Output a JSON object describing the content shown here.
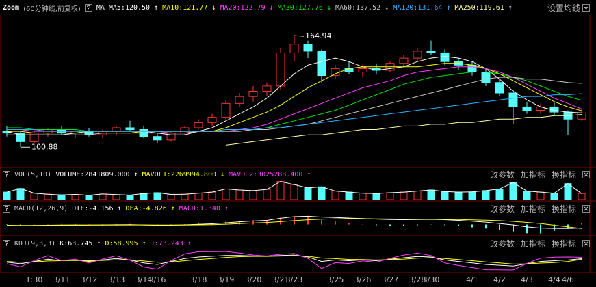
{
  "chart_data": [
    {
      "type": "candlestick",
      "title": "Zoom",
      "subtitle": "(60分钟线,前复权)",
      "legend_title": "MA",
      "settings": "设置均线",
      "up_color": "#ff3232",
      "down_color": "#54fcfc",
      "categories": [
        null,
        null,
        "1:30",
        null,
        "3/11",
        null,
        "3/12",
        null,
        "3/13",
        null,
        "3/14",
        "3/16",
        null,
        null,
        "3/18",
        null,
        "3/19",
        null,
        "3/20",
        null,
        "3/21",
        "3/23",
        null,
        null,
        "3/25",
        null,
        "3/26",
        null,
        "3/27",
        null,
        "3/28",
        "3/30",
        null,
        null,
        "4/1",
        null,
        "4/2",
        null,
        "4/3",
        null,
        "4/4",
        "4/6",
        null
      ],
      "open": [
        110,
        109,
        104,
        109,
        111,
        109,
        110,
        108,
        110,
        112,
        111,
        107,
        105,
        109,
        112,
        115,
        118,
        126,
        130,
        133,
        136,
        155,
        160,
        156,
        142,
        146,
        144,
        146,
        145,
        149,
        152,
        156,
        155,
        150,
        148,
        144,
        138,
        132,
        124,
        122,
        124,
        121,
        117
      ],
      "high": [
        113,
        110,
        110,
        112,
        113,
        111,
        112,
        111,
        113,
        116,
        113,
        109,
        110,
        113,
        117,
        120,
        128,
        132,
        136,
        138,
        158,
        164.94,
        162,
        157,
        148,
        150,
        148,
        149,
        150,
        154,
        158,
        162,
        157,
        152,
        150,
        146,
        140,
        134,
        127,
        126,
        127,
        122,
        123
      ],
      "low": [
        107,
        100.88,
        103,
        107,
        108,
        106,
        107,
        106,
        108,
        110,
        106,
        103,
        104,
        108,
        111,
        113,
        117,
        124,
        127,
        130,
        134,
        150,
        152,
        138,
        140,
        143,
        141,
        143,
        144,
        147,
        150,
        154,
        148,
        145,
        142,
        136,
        130,
        114,
        120,
        120,
        119,
        108,
        116
      ],
      "close": [
        109,
        104,
        109,
        111,
        109,
        110,
        108,
        110,
        112,
        111,
        107,
        105,
        109,
        112,
        115,
        118,
        126,
        130,
        133,
        136,
        155,
        160,
        156,
        142,
        146,
        144,
        146,
        145,
        149,
        152,
        156,
        155,
        150,
        148,
        144,
        138,
        132,
        124,
        122,
        124,
        121,
        117,
        120.5
      ],
      "ylim": [
        90,
        176
      ],
      "series": [
        {
          "name": "MA5:120.50 ↑",
          "color": "#ffffff",
          "values": [
            110,
            108,
            108,
            108,
            108,
            109,
            110,
            110,
            110,
            110,
            110,
            109,
            108,
            108,
            110,
            112,
            116,
            120,
            124,
            129,
            136,
            143,
            148,
            150,
            152,
            150,
            147,
            145,
            146,
            147,
            150,
            152,
            153,
            152,
            150,
            146,
            140,
            133,
            128,
            124,
            122,
            121,
            120.5
          ]
        },
        {
          "name": "MA10:121.77 ↓",
          "color": "#ffff00",
          "values": [
            110,
            110,
            109,
            109,
            109,
            109,
            109,
            109,
            109,
            109,
            110,
            110,
            110,
            110,
            110,
            110,
            112,
            115,
            118,
            121,
            125,
            130,
            135,
            139,
            143,
            146,
            147,
            147,
            147,
            147,
            147,
            148,
            149,
            149,
            148,
            146,
            143,
            139,
            135,
            131,
            127,
            124,
            121.77
          ]
        },
        {
          "name": "MA20:122.79 ↓",
          "color": "#ff40ff",
          "values": [
            111,
            111,
            110,
            110,
            110,
            110,
            110,
            110,
            110,
            110,
            110,
            110,
            109,
            109,
            110,
            110,
            110,
            111,
            112,
            114,
            117,
            120,
            123,
            126,
            129,
            132,
            135,
            137,
            139,
            142,
            144,
            145,
            146,
            147,
            147,
            146,
            144,
            141,
            137,
            133,
            129,
            126,
            122.79
          ]
        },
        {
          "name": "MA30:127.76 ↓",
          "color": "#00e600",
          "values": [
            112,
            112,
            111,
            111,
            111,
            111,
            110,
            110,
            110,
            110,
            110,
            110,
            110,
            110,
            110,
            110,
            110,
            110,
            111,
            112,
            114,
            116,
            118,
            120,
            122,
            125,
            128,
            131,
            134,
            137,
            139,
            141,
            142,
            143,
            144,
            144,
            143,
            141,
            139,
            136,
            133,
            130,
            127.76
          ]
        },
        {
          "name": "MA60:137.52 ↓",
          "color": "#c8c8c8",
          "values": [
            108,
            108,
            108,
            108,
            108,
            108,
            108,
            109,
            109,
            109,
            109,
            109,
            109,
            109,
            110,
            110,
            110,
            110,
            111,
            111,
            112,
            113,
            114,
            116,
            118,
            120,
            122,
            124,
            126,
            128,
            130,
            132,
            134,
            136,
            138,
            140,
            141,
            141,
            140,
            140,
            139,
            138,
            137.52
          ]
        },
        {
          "name": "MA120:131.64 ↑",
          "color": "#2ab4ff",
          "values": [
            111,
            111,
            111,
            110,
            110,
            110,
            110,
            110,
            110,
            110,
            110,
            110,
            110,
            110,
            110,
            110,
            111,
            111,
            111,
            112,
            112,
            113,
            114,
            115,
            116,
            117,
            118,
            119,
            120,
            121,
            122,
            123,
            124,
            125,
            126,
            127,
            128,
            129,
            130,
            130,
            131,
            131,
            131.64
          ]
        },
        {
          "name": "MA250:119.61 ↑",
          "color": "#ffffa8",
          "values": [
            null,
            null,
            null,
            null,
            null,
            null,
            null,
            null,
            null,
            null,
            null,
            null,
            null,
            null,
            null,
            null,
            102,
            103,
            104,
            105,
            106,
            107,
            108,
            108,
            109,
            110,
            111,
            111,
            112,
            113,
            113,
            114,
            114,
            115,
            115,
            116,
            117,
            117,
            118,
            118,
            119,
            119,
            119.61
          ]
        }
      ]
    },
    {
      "type": "bar",
      "title": "VOL(5,10)",
      "buttons": [
        "改参数",
        "加指标",
        "换指标"
      ],
      "ylim": [
        0,
        9000000
      ],
      "series": [
        {
          "name": "VOLUME:2841809.000 ↑",
          "color": "#ffffff",
          "values": [
            3500000,
            5200000,
            3000000,
            2500000,
            2200000,
            2400000,
            2000000,
            2600000,
            2300000,
            2100000,
            2800000,
            3200000,
            2400000,
            2500000,
            3000000,
            3500000,
            5000000,
            4500000,
            4200000,
            4800000,
            8500000,
            7000000,
            5500000,
            6000000,
            4000000,
            3500000,
            3000000,
            2800000,
            3200000,
            3500000,
            4000000,
            4500000,
            3800000,
            3500000,
            3600000,
            4200000,
            5000000,
            8000000,
            4000000,
            3500000,
            3000000,
            7500000,
            2841809
          ]
        },
        {
          "name": "MAVOL1:2269994.800 ↓",
          "color": "#ffff00"
        },
        {
          "name": "MAVOL2:3025288.400 ↑",
          "color": "#ff40ff"
        }
      ]
    },
    {
      "type": "macd",
      "title": "MACD(12,26,9)",
      "buttons": [
        "改参数",
        "加指标",
        "换指标"
      ],
      "ylim": [
        -12,
        12
      ],
      "up_color": "#ff3232",
      "down_color": "#54fcfc",
      "series": [
        {
          "name": "DIF:-4.156 ↑",
          "color": "#ffffff",
          "values": [
            -1,
            -1.5,
            -1.2,
            -0.8,
            -0.6,
            -0.5,
            -0.6,
            -0.5,
            -0.3,
            -0.2,
            -0.5,
            -0.9,
            -0.8,
            -0.4,
            0.2,
            0.8,
            2,
            3.2,
            4.2,
            5,
            7.5,
            9.5,
            10,
            9,
            8.5,
            7.8,
            7.2,
            6.5,
            6,
            5.8,
            6,
            6.2,
            5.8,
            5,
            4,
            2.8,
            1.2,
            -0.5,
            -2.8,
            -4.2,
            -4.6,
            -4.8,
            -4.156
          ]
        },
        {
          "name": "DEA:-4.826 ↑",
          "color": "#ffff00",
          "values": [
            -0.8,
            -1,
            -1.1,
            -1,
            -0.9,
            -0.8,
            -0.7,
            -0.7,
            -0.6,
            -0.5,
            -0.5,
            -0.6,
            -0.6,
            -0.6,
            -0.4,
            -0.2,
            0.3,
            1,
            1.7,
            2.4,
            3.4,
            4.6,
            5.7,
            6.4,
            6.8,
            7,
            7,
            6.9,
            6.7,
            6.5,
            6.4,
            6.3,
            6.2,
            6,
            5.6,
            5.2,
            4.6,
            3.7,
            2.5,
            1.2,
            -0.8,
            -2.8,
            -4.826
          ]
        },
        {
          "name": "MACD:1.340 ↑",
          "color": "#ff40ff",
          "type": "bar",
          "values": [
            -0.4,
            -1,
            -0.2,
            0.4,
            0.6,
            0.6,
            0.2,
            0.4,
            0.6,
            0.6,
            0,
            -0.6,
            -0.4,
            0.4,
            1.2,
            2,
            3.4,
            4.4,
            5,
            5.2,
            8.2,
            9.8,
            8.6,
            5.2,
            3.4,
            1.6,
            0.4,
            -0.8,
            -1.4,
            -1.4,
            -0.8,
            -0.2,
            -0.8,
            -2,
            -3.2,
            -4.8,
            -6.8,
            -8.4,
            -10.6,
            -10.8,
            -7.6,
            -4,
            1.34
          ]
        }
      ]
    },
    {
      "type": "line",
      "title": "KDJ(9,3,3)",
      "buttons": [
        "改参数",
        "加指标",
        "换指标"
      ],
      "ylim": [
        -20,
        120
      ],
      "series": [
        {
          "name": "K:63.745 ↑",
          "color": "#ffffff",
          "values": [
            40,
            30,
            45,
            60,
            50,
            55,
            45,
            55,
            65,
            55,
            35,
            25,
            45,
            65,
            75,
            80,
            85,
            85,
            82,
            80,
            85,
            88,
            75,
            45,
            55,
            50,
            55,
            50,
            60,
            70,
            78,
            75,
            55,
            45,
            35,
            25,
            20,
            15,
            30,
            45,
            50,
            55,
            63.745
          ]
        },
        {
          "name": "D:58.995 ↑",
          "color": "#ffff00",
          "values": [
            45,
            40,
            42,
            48,
            50,
            52,
            50,
            52,
            56,
            56,
            48,
            40,
            42,
            50,
            58,
            65,
            72,
            77,
            79,
            79,
            81,
            83,
            80,
            68,
            64,
            59,
            58,
            55,
            57,
            61,
            67,
            70,
            65,
            58,
            50,
            42,
            35,
            28,
            29,
            34,
            38,
            45,
            58.995
          ]
        },
        {
          "name": "J:73.243 ↑",
          "color": "#ff40ff",
          "values": [
            30,
            10,
            51,
            84,
            50,
            61,
            35,
            61,
            83,
            53,
            9,
            -5,
            51,
            95,
            109,
            110,
            111,
            101,
            88,
            82,
            93,
            98,
            65,
            -1,
            37,
            32,
            49,
            40,
            66,
            88,
            100,
            85,
            35,
            19,
            5,
            -9,
            -10,
            -11,
            32,
            67,
            74,
            75,
            73.243
          ]
        }
      ]
    }
  ]
}
